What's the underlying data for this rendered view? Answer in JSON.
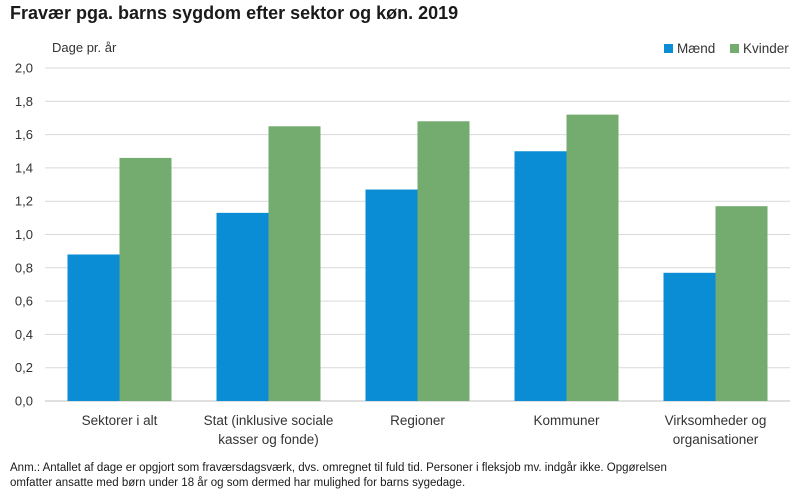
{
  "title": "Fravær pga. barns sygdom efter sektor og køn. 2019",
  "note_lines": [
    "Anm.: Antallet af dage er opgjort som fraværsdagsværk, dvs. omregnet til fuld tid. Personer i fleksjob mv. indgår ikke. Opgørelsen",
    "omfatter ansatte med børn under 18 år og som dermed har mulighed for barns sygedage."
  ],
  "colors": {
    "maend": "#0a8dd5",
    "kvinder": "#74ab6e",
    "grid": "#d9d9d9",
    "axis": "#bfbfbf"
  },
  "chart_data": {
    "type": "bar",
    "title": "Fravær pga. barns sygdom efter sektor og køn. 2019",
    "ylabel": "Dage pr. år",
    "xlabel": "",
    "ylim": [
      0,
      2.0
    ],
    "yticks": [
      "0,0",
      "0,2",
      "0,4",
      "0,6",
      "0,8",
      "1,0",
      "1,2",
      "1,4",
      "1,6",
      "1,8",
      "2,0"
    ],
    "grid": true,
    "legend_position": "top-right",
    "categories": [
      [
        "Sektorer i alt"
      ],
      [
        "Stat (inklusive sociale",
        "kasser og fonde)"
      ],
      [
        "Regioner"
      ],
      [
        "Kommuner"
      ],
      [
        "Virksomheder og",
        "organisationer"
      ]
    ],
    "series": [
      {
        "name": "Mænd",
        "values": [
          0.88,
          1.13,
          1.27,
          1.5,
          0.77
        ]
      },
      {
        "name": "Kvinder",
        "values": [
          1.46,
          1.65,
          1.68,
          1.72,
          1.17
        ]
      }
    ]
  }
}
